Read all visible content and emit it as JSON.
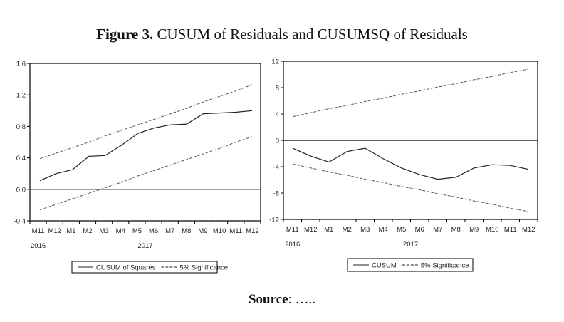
{
  "title": {
    "bold": "Figure 3.",
    "rest": " CUSUM of Residuals and CUSUMSQ of Residuals"
  },
  "source": {
    "bold": "Source",
    "rest": ": ….."
  },
  "colors": {
    "line": "#222222",
    "band": "#555555",
    "axis": "#000000"
  },
  "chart_data": [
    {
      "type": "line",
      "name": "cusumsq",
      "categories": [
        "M11",
        "M12",
        "M1",
        "M2",
        "M3",
        "M4",
        "M5",
        "M6",
        "M7",
        "M8",
        "M9",
        "M10",
        "M11",
        "M12"
      ],
      "years": [
        {
          "label": "2016",
          "at": 0
        },
        {
          "label": "2017",
          "at": 6.5
        }
      ],
      "yticks": [
        "1.6",
        "1.2",
        "0.8",
        "0.4",
        "0.0",
        "-0.4"
      ],
      "ylim": [
        -0.4,
        1.6
      ],
      "zero_line": 0,
      "series": [
        {
          "name": "CUSUM of Squares",
          "style": "solid",
          "values": [
            0.11,
            0.2,
            0.25,
            0.42,
            0.43,
            0.56,
            0.71,
            0.78,
            0.82,
            0.83,
            0.96,
            0.97,
            0.98,
            1.0
          ]
        },
        {
          "name": "5% Significance",
          "style": "dashed",
          "values": [
            0.39,
            0.46,
            0.53,
            0.6,
            0.68,
            0.75,
            0.82,
            0.89,
            0.96,
            1.03,
            1.11,
            1.18,
            1.25,
            1.33
          ]
        },
        {
          "name": "5% Significance lower",
          "style": "dashed",
          "values": [
            -0.26,
            -0.19,
            -0.12,
            -0.05,
            0.02,
            0.09,
            0.17,
            0.24,
            0.31,
            0.38,
            0.45,
            0.52,
            0.6,
            0.67
          ]
        }
      ],
      "legend": [
        {
          "label": "CUSUM of Squares",
          "style": "solid"
        },
        {
          "label": "5% Significance",
          "style": "dashed"
        }
      ]
    },
    {
      "type": "line",
      "name": "cusum",
      "categories": [
        "M11",
        "M12",
        "M1",
        "M2",
        "M3",
        "M4",
        "M5",
        "M6",
        "M7",
        "M8",
        "M9",
        "M10",
        "M11",
        "M12"
      ],
      "years": [
        {
          "label": "2016",
          "at": 0
        },
        {
          "label": "2017",
          "at": 6.5
        }
      ],
      "yticks": [
        "12",
        "8",
        "4",
        "0",
        "-4",
        "-8",
        "-12"
      ],
      "ylim": [
        -12,
        12
      ],
      "zero_line": 0,
      "series": [
        {
          "name": "CUSUM",
          "style": "solid",
          "values": [
            -1.2,
            -2.4,
            -3.3,
            -1.7,
            -1.2,
            -2.8,
            -4.2,
            -5.2,
            -5.9,
            -5.6,
            -4.2,
            -3.7,
            -3.8,
            -4.4
          ]
        },
        {
          "name": "5% Significance",
          "style": "dashed",
          "values": [
            3.6,
            4.2,
            4.8,
            5.3,
            5.9,
            6.4,
            7.0,
            7.5,
            8.1,
            8.6,
            9.2,
            9.7,
            10.3,
            10.8
          ]
        },
        {
          "name": "5% Significance lower",
          "style": "dashed",
          "values": [
            -3.6,
            -4.2,
            -4.8,
            -5.3,
            -5.9,
            -6.4,
            -7.0,
            -7.5,
            -8.1,
            -8.6,
            -9.2,
            -9.7,
            -10.3,
            -10.8
          ]
        }
      ],
      "legend": [
        {
          "label": "CUSUM",
          "style": "solid"
        },
        {
          "label": "5% Significance",
          "style": "dashed"
        }
      ]
    }
  ]
}
